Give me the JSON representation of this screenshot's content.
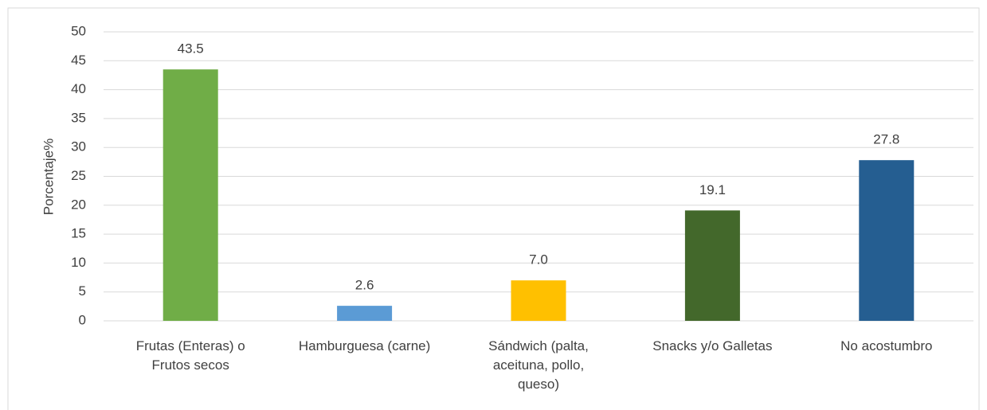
{
  "chart_data": {
    "type": "bar",
    "y_label": "Porcentaje%",
    "categories": [
      "Frutas (Enteras) o Frutos secos",
      "Hamburguesa (carne)",
      "Sándwich (palta, aceituna, pollo, queso)",
      "Snacks y/o Galletas",
      "No acostumbro"
    ],
    "values": [
      43.5,
      2.6,
      7.0,
      19.1,
      27.8
    ],
    "value_labels": [
      "43.5",
      "2.6",
      "7.0",
      "19.1",
      "27.8"
    ],
    "colors": [
      "#70ad47",
      "#5b9bd5",
      "#ffc000",
      "#43682b",
      "#255e91"
    ],
    "ylim": [
      0,
      50
    ],
    "yticks": [
      0,
      5,
      10,
      15,
      20,
      25,
      30,
      35,
      40,
      45,
      50
    ],
    "grid": true
  }
}
